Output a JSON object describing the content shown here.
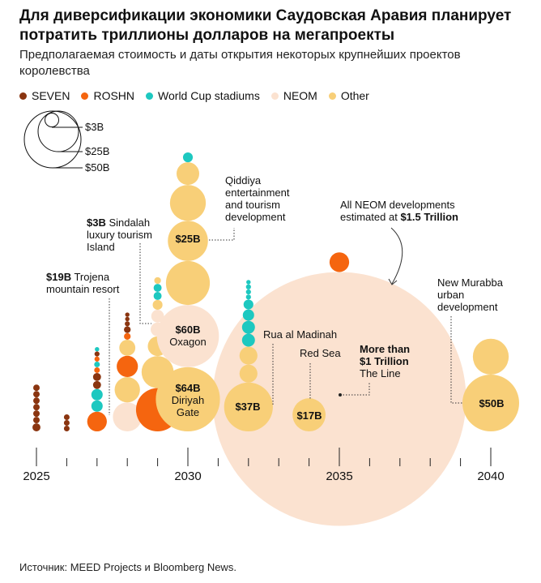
{
  "header": {
    "title": "Для диверсификации экономики Саудовская Аравия планирует потратить триллионы долларов на мегапроекты",
    "subtitle": "Предполагаемая стоимость и даты открытия некоторых крупнейших проектов королевства"
  },
  "colors": {
    "SEVEN": "#8A3510",
    "ROSHN": "#F5650F",
    "World Cup stadiums": "#1DC8C0",
    "NEOM": "#FBE2D0",
    "Other": "#F8CF78"
  },
  "source": "Источник: MEED Projects и Bloomberg News.",
  "chart_data": {
    "type": "scatter",
    "subtype": "bubble",
    "title": "Для диверсификации экономики Саудовская Аравия планирует потратить триллионы долларов на мегапроекты",
    "xlabel": "",
    "ylabel": "",
    "xlim": [
      2025,
      2040
    ],
    "x_ticks": [
      2025,
      2030,
      2035,
      2040
    ],
    "legend": {
      "placement": "top-left",
      "entries": [
        "SEVEN",
        "ROSHN",
        "World Cup stadiums",
        "NEOM",
        "Other"
      ]
    },
    "size_legend": {
      "values": [
        3,
        25,
        50
      ],
      "labels": [
        "$3B",
        "$25B",
        "$50B"
      ]
    },
    "bubbles": [
      {
        "year": 2025,
        "value": 1,
        "category": "SEVEN"
      },
      {
        "year": 2025,
        "value": 0.65,
        "category": "SEVEN"
      },
      {
        "year": 2025,
        "value": 0.65,
        "category": "SEVEN"
      },
      {
        "year": 2025,
        "value": 0.65,
        "category": "SEVEN"
      },
      {
        "year": 2025,
        "value": 0.65,
        "category": "SEVEN"
      },
      {
        "year": 2025,
        "value": 0.65,
        "category": "SEVEN"
      },
      {
        "year": 2025,
        "value": 0.65,
        "category": "SEVEN"
      },
      {
        "year": 2026,
        "value": 0.5,
        "category": "SEVEN"
      },
      {
        "year": 2026,
        "value": 0.5,
        "category": "SEVEN"
      },
      {
        "year": 2026,
        "value": 0.5,
        "category": "SEVEN"
      },
      {
        "year": 2027,
        "value": 6,
        "category": "ROSHN"
      },
      {
        "year": 2027,
        "value": 2,
        "category": "World Cup stadiums"
      },
      {
        "year": 2027,
        "value": 2,
        "category": "World Cup stadiums"
      },
      {
        "year": 2027,
        "value": 1,
        "category": "SEVEN"
      },
      {
        "year": 2027,
        "value": 1,
        "category": "SEVEN"
      },
      {
        "year": 2027,
        "value": 0.5,
        "category": "ROSHN"
      },
      {
        "year": 2027,
        "value": 0.5,
        "category": "World Cup stadiums"
      },
      {
        "year": 2027,
        "value": 0.4,
        "category": "ROSHN"
      },
      {
        "year": 2027,
        "value": 0.4,
        "category": "SEVEN"
      },
      {
        "year": 2027,
        "value": 0.3,
        "category": "World Cup stadiums"
      },
      {
        "year": 2028,
        "value": 13,
        "category": "NEOM"
      },
      {
        "year": 2028,
        "value": 10,
        "category": "Other"
      },
      {
        "year": 2028,
        "value": 7,
        "category": "ROSHN"
      },
      {
        "year": 2028,
        "value": 4,
        "category": "Other"
      },
      {
        "year": 2028,
        "value": 0.7,
        "category": "ROSHN"
      },
      {
        "year": 2028,
        "value": 0.7,
        "category": "SEVEN"
      },
      {
        "year": 2028,
        "value": 0.4,
        "category": "SEVEN"
      },
      {
        "year": 2028,
        "value": 0.3,
        "category": "SEVEN"
      },
      {
        "year": 2028,
        "value": 0.3,
        "category": "SEVEN"
      },
      {
        "year": 2029,
        "value": 29,
        "category": "ROSHN"
      },
      {
        "year": 2029,
        "value": 16,
        "category": "Other"
      },
      {
        "year": 2029,
        "value": 6,
        "category": "Other"
      },
      {
        "year": 2029,
        "value": 3,
        "category": "NEOM",
        "label": "Sindalah"
      },
      {
        "year": 2029,
        "value": 2.5,
        "category": "NEOM"
      },
      {
        "year": 2029,
        "value": 1.5,
        "category": "Other"
      },
      {
        "year": 2029,
        "value": 1,
        "category": "World Cup stadiums"
      },
      {
        "year": 2029,
        "value": 1,
        "category": "World Cup stadiums"
      },
      {
        "year": 2029,
        "value": 0.7,
        "category": "Other"
      },
      {
        "year": 2030,
        "value": 64,
        "category": "Other",
        "label": "Diriyah Gate"
      },
      {
        "year": 2030,
        "value": 60,
        "category": "NEOM",
        "label": "Oxagon"
      },
      {
        "year": 2030,
        "value": 30,
        "category": "Other"
      },
      {
        "year": 2030,
        "value": 25,
        "category": "Other",
        "label": "Qiddiya"
      },
      {
        "year": 2030,
        "value": 20,
        "category": "Other"
      },
      {
        "year": 2030,
        "value": 8,
        "category": "Other"
      },
      {
        "year": 2030,
        "value": 1.5,
        "category": "World Cup stadiums"
      },
      {
        "year": 2032,
        "value": 37,
        "category": "Other",
        "label": "Rua al Madinah"
      },
      {
        "year": 2032,
        "value": 5,
        "category": "Other"
      },
      {
        "year": 2032,
        "value": 5,
        "category": "Other"
      },
      {
        "year": 2032,
        "value": 2.6,
        "category": "World Cup stadiums"
      },
      {
        "year": 2032,
        "value": 2.6,
        "category": "World Cup stadiums"
      },
      {
        "year": 2032,
        "value": 2,
        "category": "World Cup stadiums"
      },
      {
        "year": 2032,
        "value": 1.5,
        "category": "World Cup stadiums"
      },
      {
        "year": 2032,
        "value": 0.4,
        "category": "World Cup stadiums"
      },
      {
        "year": 2032,
        "value": 0.4,
        "category": "World Cup stadiums"
      },
      {
        "year": 2032,
        "value": 0.4,
        "category": "World Cup stadiums"
      },
      {
        "year": 2032,
        "value": 0.3,
        "category": "World Cup stadiums"
      },
      {
        "year": 2035,
        "value": 1000,
        "category": "NEOM",
        "label": "The Line",
        "centered": true
      },
      {
        "year": 2035,
        "value": 6,
        "category": "ROSHN"
      },
      {
        "year": 2034,
        "value": 17,
        "category": "Other",
        "label": "Red Sea"
      },
      {
        "year": 2040,
        "value": 50,
        "category": "Other",
        "label": "New Murabba"
      },
      {
        "year": 2040,
        "value": 20,
        "category": "Other"
      }
    ],
    "bubble_labels": {
      "b25": "$25B",
      "b60": "$60B",
      "oxagon": "Oxagon",
      "b64": "$64B",
      "diriyah1": "Diriyah",
      "diriyah2": "Gate",
      "b37": "$37B",
      "b17": "$17B",
      "b50": "$50B"
    },
    "annotations": {
      "qiddiya": [
        "Qiddiya",
        "entertainment",
        "and tourism",
        "development"
      ],
      "sindalah_value": "$3B",
      "sindalah": [
        " Sindalah",
        "luxury tourism",
        "Island"
      ],
      "trojena_value": "$19B",
      "trojena": [
        " Trojena",
        "mountain resort"
      ],
      "neom_all": [
        "All NEOM developments",
        "estimated at "
      ],
      "neom_value": "$1.5 Trillion",
      "rua": "Rua al Madinah",
      "redsea": "Red Sea",
      "line": [
        "More than",
        "$1 Trillion",
        "The Line"
      ],
      "murabba": [
        "New Murabba",
        "urban",
        "development"
      ]
    }
  }
}
